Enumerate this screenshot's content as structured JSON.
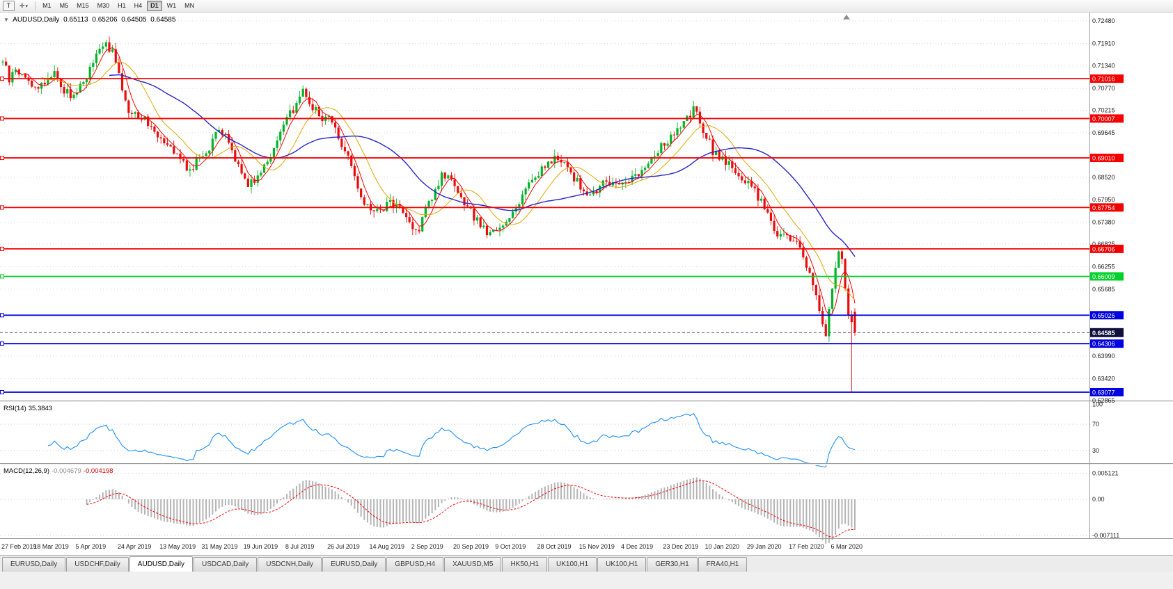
{
  "toolbar": {
    "text_tool_label": "T",
    "timeframes": [
      "M1",
      "M5",
      "M15",
      "M30",
      "H1",
      "H4",
      "D1",
      "W1",
      "MN"
    ],
    "active_timeframe": "D1"
  },
  "chart_header": {
    "collapse_icon": "▼",
    "symbol": "AUDUSD,Daily",
    "open": "0.65113",
    "high": "0.65206",
    "low": "0.64505",
    "close": "0.64585"
  },
  "price_axis_ticks": [
    "0.72480",
    "0.71910",
    "0.71340",
    "0.70770",
    "0.70215",
    "0.69645",
    "0.68520",
    "0.67950",
    "0.67380",
    "0.66825",
    "0.66255",
    "0.65685",
    "0.63990",
    "0.63420",
    "0.62865"
  ],
  "hlines": [
    {
      "label": "0.71016",
      "value": 0.71016,
      "color": "#f40000",
      "type": "resistance"
    },
    {
      "label": "0.70007",
      "value": 0.70007,
      "color": "#f40000",
      "type": "resistance"
    },
    {
      "label": "0.69010",
      "value": 0.6901,
      "color": "#f40000",
      "type": "resistance"
    },
    {
      "label": "0.67754",
      "value": 0.67754,
      "color": "#f40000",
      "type": "resistance"
    },
    {
      "label": "0.66706",
      "value": 0.66706,
      "color": "#f40000",
      "type": "resistance"
    },
    {
      "label": "0.66009",
      "value": 0.66009,
      "color": "#00d02a",
      "type": "level"
    },
    {
      "label": "0.65026",
      "value": 0.65026,
      "color": "#0000e0",
      "type": "support"
    },
    {
      "label": "0.64306",
      "value": 0.64306,
      "color": "#0000e0",
      "type": "support"
    },
    {
      "label": "0.63077",
      "value": 0.63077,
      "color": "#0000e0",
      "type": "support"
    }
  ],
  "bid": {
    "label": "0.64585",
    "value": 0.64585,
    "badge_color": "#10103c"
  },
  "time_axis": [
    "27 Feb 2019",
    "18 Mar 2019",
    "5 Apr 2019",
    "24 Apr 2019",
    "13 May 2019",
    "31 May 2019",
    "19 Jun 2019",
    "8 Jul 2019",
    "26 Jul 2019",
    "14 Aug 2019",
    "2 Sep 2019",
    "20 Sep 2019",
    "9 Oct 2019",
    "28 Oct 2019",
    "15 Nov 2019",
    "4 Dec 2019",
    "23 Dec 2019",
    "10 Jan 2020",
    "29 Jan 2020",
    "17 Feb 2020",
    "6 Mar 2020"
  ],
  "rsi_panel": {
    "name": "RSI(14)",
    "value": "35.3843",
    "axis": [
      "100",
      "70",
      "30"
    ],
    "levels": [
      70,
      30
    ],
    "line_color": "#1e90ff"
  },
  "macd_panel": {
    "name": "MACD(12,26,9)",
    "value_main": "-0.004679",
    "value_signal": "-0.004198",
    "axis": [
      "0.005121",
      "0.00",
      "-0.007111"
    ],
    "histogram_color": "#b4b4b4",
    "signal_color": "#ff0000"
  },
  "tabs": {
    "items": [
      "EURUSD,Daily",
      "USDCHF,Daily",
      "AUDUSD,Daily",
      "USDCAD,Daily",
      "USDCNH,Daily",
      "EURUSD,Daily",
      "GBPUSD,H4",
      "XAUUSD,M5",
      "HK50,H1",
      "UK100,H1",
      "UK100,H1",
      "GER30,H1",
      "FRA40,H1"
    ],
    "active_index": 2
  },
  "chart_data": {
    "type": "candlestick",
    "symbol": "AUDUSD",
    "timeframe": "Daily",
    "bars": 265,
    "price_range": [
      0.62865,
      0.7248
    ],
    "up_color": "#00b327",
    "down_color": "#ea0b0b",
    "ma_colors": [
      "#ff0000",
      "#e0a800",
      "#2525cd"
    ],
    "close_anchors": [
      [
        0,
        0.715
      ],
      [
        2,
        0.7098
      ],
      [
        4,
        0.7125
      ],
      [
        7,
        0.7105
      ],
      [
        10,
        0.7078
      ],
      [
        13,
        0.7092
      ],
      [
        16,
        0.7122
      ],
      [
        19,
        0.7068
      ],
      [
        22,
        0.7058
      ],
      [
        26,
        0.7108
      ],
      [
        29,
        0.716
      ],
      [
        32,
        0.7192
      ],
      [
        34,
        0.7168
      ],
      [
        36,
        0.7105
      ],
      [
        39,
        0.7022
      ],
      [
        42,
        0.7008
      ],
      [
        45,
        0.6992
      ],
      [
        48,
        0.6962
      ],
      [
        52,
        0.6935
      ],
      [
        55,
        0.6898
      ],
      [
        58,
        0.6868
      ],
      [
        61,
        0.6902
      ],
      [
        64,
        0.6928
      ],
      [
        67,
        0.6972
      ],
      [
        70,
        0.6942
      ],
      [
        73,
        0.6882
      ],
      [
        76,
        0.6835
      ],
      [
        79,
        0.6856
      ],
      [
        82,
        0.6895
      ],
      [
        85,
        0.6945
      ],
      [
        88,
        0.6998
      ],
      [
        91,
        0.7038
      ],
      [
        93,
        0.7072
      ],
      [
        96,
        0.7032
      ],
      [
        99,
        0.6996
      ],
      [
        101,
        0.7012
      ],
      [
        104,
        0.6955
      ],
      [
        107,
        0.6905
      ],
      [
        109,
        0.6848
      ],
      [
        111,
        0.6792
      ],
      [
        114,
        0.6776
      ],
      [
        117,
        0.6762
      ],
      [
        120,
        0.6792
      ],
      [
        123,
        0.6772
      ],
      [
        126,
        0.6738
      ],
      [
        129,
        0.6716
      ],
      [
        131,
        0.6768
      ],
      [
        134,
        0.6818
      ],
      [
        136,
        0.6862
      ],
      [
        139,
        0.6838
      ],
      [
        142,
        0.6792
      ],
      [
        145,
        0.6762
      ],
      [
        148,
        0.6732
      ],
      [
        151,
        0.6706
      ],
      [
        154,
        0.6722
      ],
      [
        157,
        0.6752
      ],
      [
        160,
        0.6792
      ],
      [
        163,
        0.6838
      ],
      [
        166,
        0.6864
      ],
      [
        169,
        0.6884
      ],
      [
        172,
        0.6904
      ],
      [
        175,
        0.6874
      ],
      [
        178,
        0.684
      ],
      [
        181,
        0.6806
      ],
      [
        184,
        0.6816
      ],
      [
        187,
        0.6846
      ],
      [
        190,
        0.683
      ],
      [
        193,
        0.6842
      ],
      [
        196,
        0.6856
      ],
      [
        199,
        0.688
      ],
      [
        202,
        0.6912
      ],
      [
        205,
        0.6936
      ],
      [
        208,
        0.6956
      ],
      [
        211,
        0.6986
      ],
      [
        214,
        0.7022
      ],
      [
        216,
        0.6992
      ],
      [
        218,
        0.6958
      ],
      [
        220,
        0.6916
      ],
      [
        223,
        0.69
      ],
      [
        226,
        0.6876
      ],
      [
        229,
        0.685
      ],
      [
        232,
        0.6826
      ],
      [
        234,
        0.6802
      ],
      [
        236,
        0.6776
      ],
      [
        238,
        0.6742
      ],
      [
        240,
        0.6712
      ],
      [
        243,
        0.6696
      ],
      [
        246,
        0.6686
      ],
      [
        248,
        0.6656
      ],
      [
        250,
        0.6606
      ],
      [
        252,
        0.6552
      ],
      [
        254,
        0.6478
      ],
      [
        255,
        0.6452
      ],
      [
        256,
        0.6512
      ],
      [
        257,
        0.6572
      ],
      [
        258,
        0.6622
      ],
      [
        259,
        0.6656
      ],
      [
        260,
        0.6642
      ],
      [
        261,
        0.6576
      ],
      [
        262,
        0.6502
      ],
      [
        263,
        0.649
      ],
      [
        264,
        0.64585
      ]
    ],
    "last_bar": {
      "open": 0.65113,
      "high": 0.65206,
      "low": 0.64505,
      "close": 0.64585
    },
    "spike": {
      "bar_from_end": 2,
      "low": 0.6308
    }
  }
}
